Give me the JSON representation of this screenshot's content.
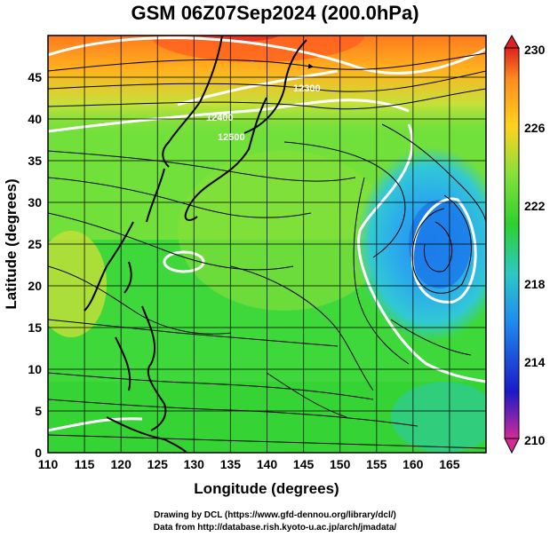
{
  "title": "GSM 06Z07Sep2024 (200.0hPa)",
  "x_axis": {
    "label": "Longitude (degrees)",
    "ticks": [
      "110",
      "115",
      "120",
      "125",
      "130",
      "135",
      "140",
      "145",
      "150",
      "155",
      "160",
      "165"
    ],
    "min": 110,
    "max": 170
  },
  "y_axis": {
    "label": "Latitude  (degrees)",
    "ticks": [
      "0",
      "5",
      "10",
      "15",
      "20",
      "25",
      "30",
      "35",
      "40",
      "45"
    ],
    "min": 0,
    "max": 50
  },
  "colorbar": {
    "ticks": [
      "230",
      "226",
      "222",
      "218",
      "214",
      "210"
    ],
    "min": 210,
    "max": 230,
    "colors": [
      "#d22b96",
      "#1a1ac8",
      "#1f8cf0",
      "#2cc8c8",
      "#2ed12e",
      "#8ae03a",
      "#ffd21e",
      "#ff8c1e",
      "#e02020"
    ]
  },
  "contour_labels": [
    "12400",
    "12500",
    "12300"
  ],
  "credits": {
    "line1": "Drawing by DCL (https://www.gfd-dennou.org/library/dcl/)",
    "line2": "Data from http://database.rish.kyoto-u.ac.jp/arch/jmadata/"
  }
}
